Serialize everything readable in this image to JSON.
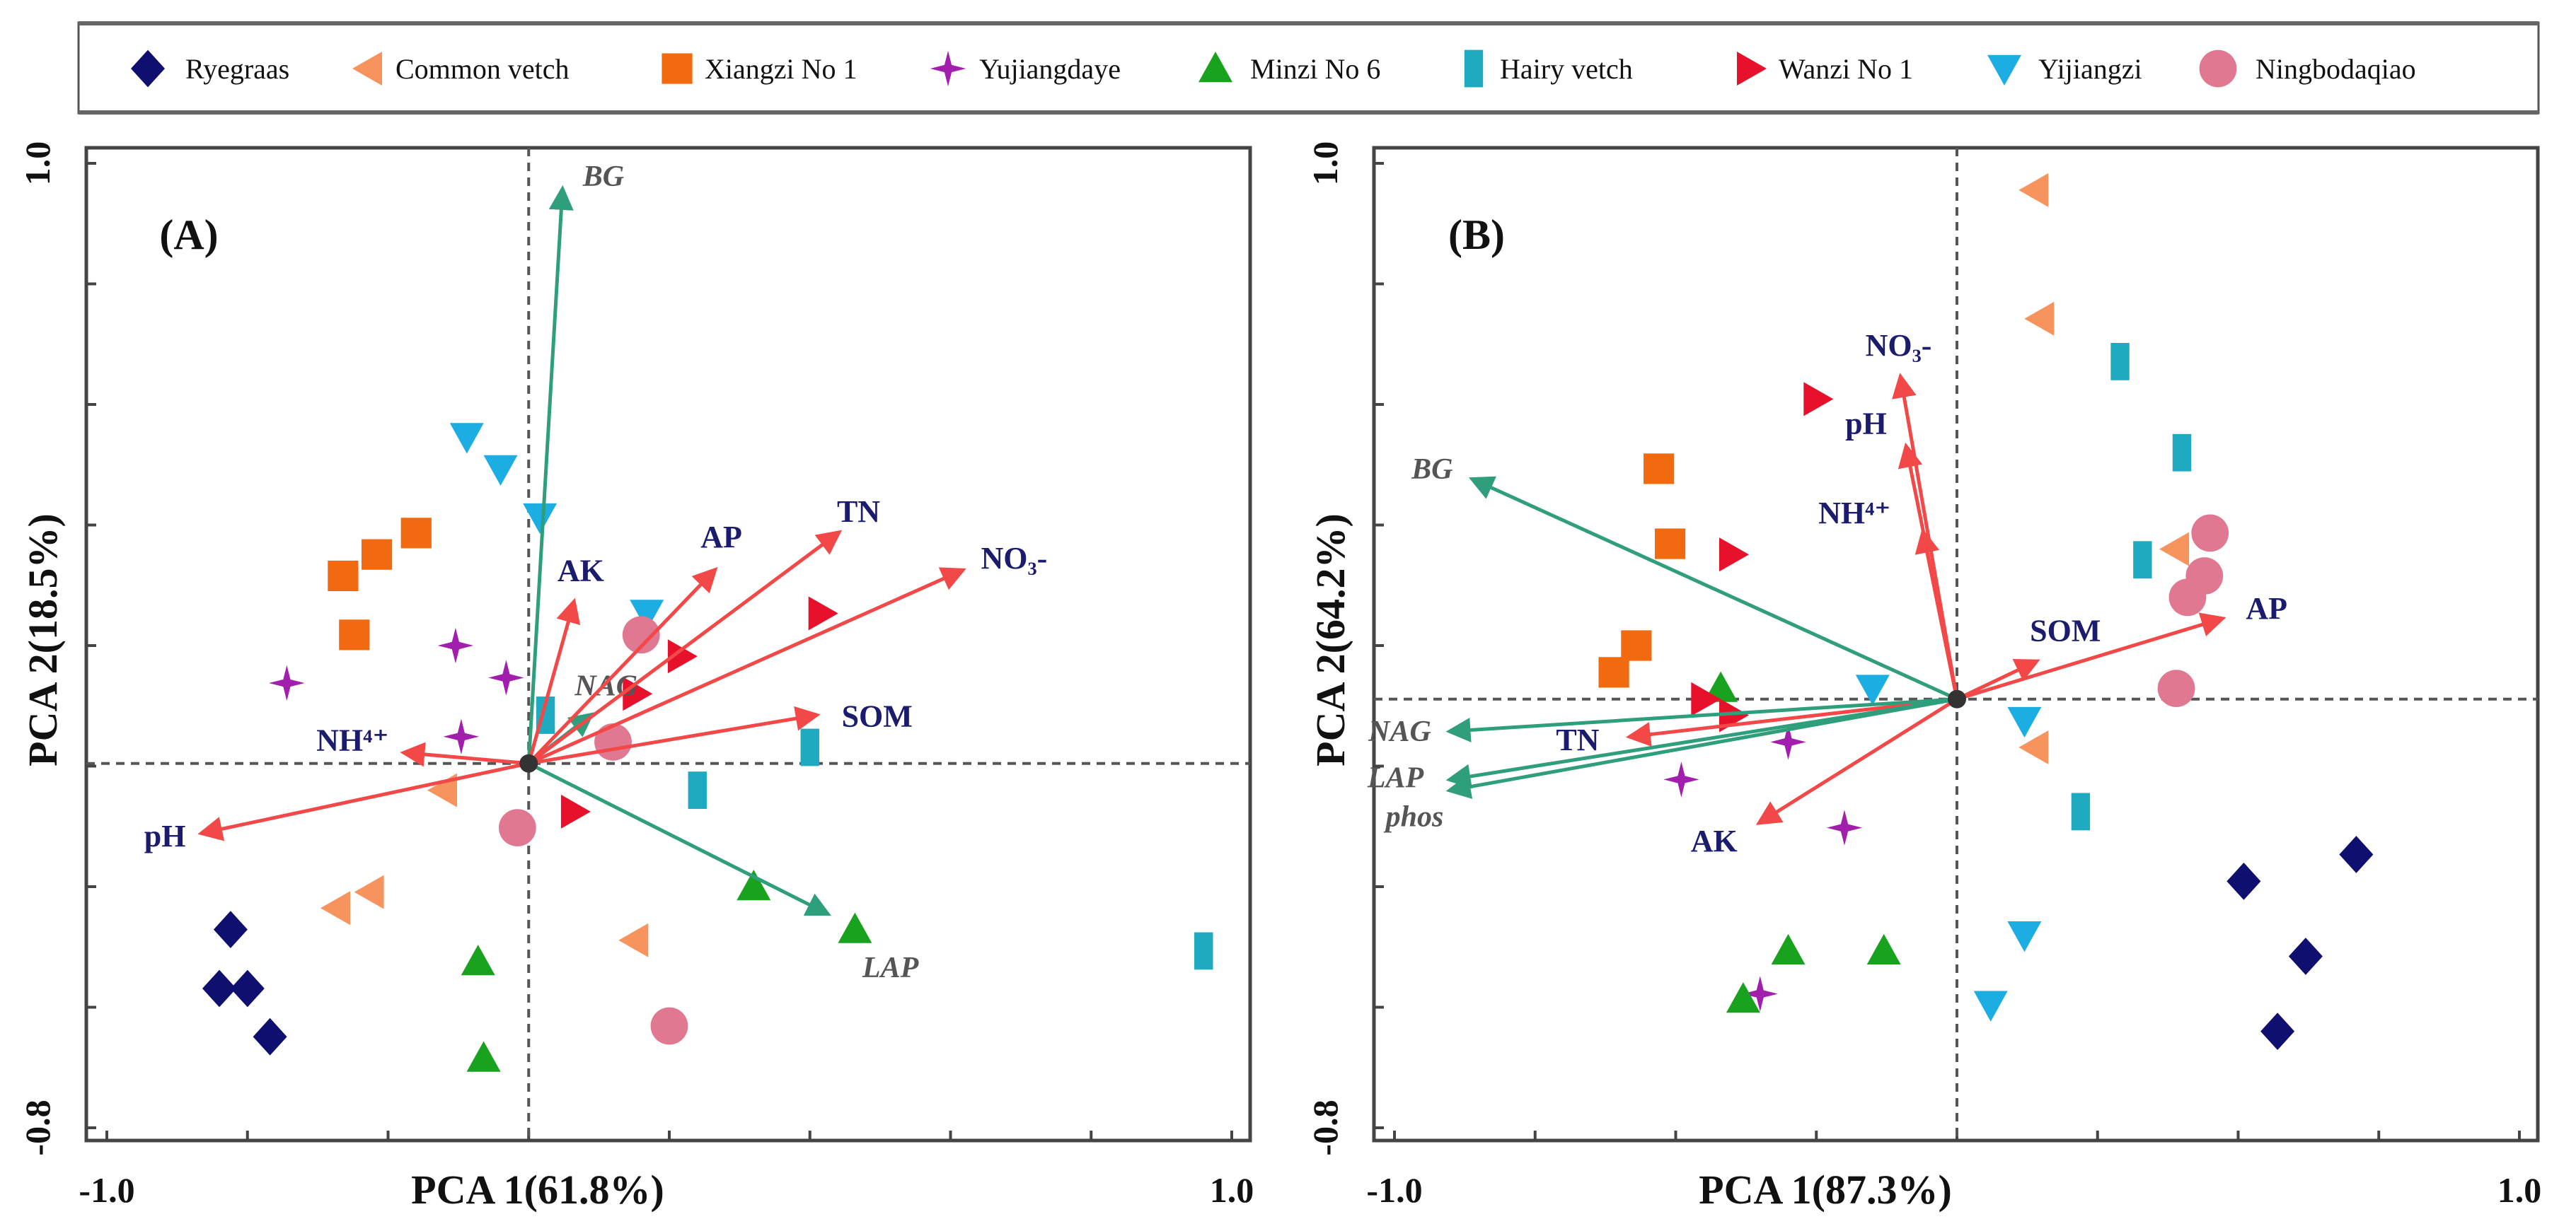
{
  "colors": {
    "Ryegraas": "#0f0f70",
    "Common vetch": "#f7945e",
    "Xiangzi No 1": "#f26a10",
    "Yujiangdaye": "#a21fad",
    "Minzi No 6": "#18a21e",
    "Hairy vetch": "#1eabc2",
    "Wanzi No 1": "#e8112b",
    "Yijiangzi": "#1caee3",
    "Ningbodaqiao": "#e07891",
    "env_arrow": "#f24848",
    "enzyme_arrow": "#2f9e7c",
    "env_label": "#1c1c6e",
    "enzyme_label": "#555555"
  },
  "legend": [
    {
      "name": "Ryegraas",
      "marker": "diamond"
    },
    {
      "name": "Common vetch",
      "marker": "triangle-left"
    },
    {
      "name": "Xiangzi No 1",
      "marker": "square"
    },
    {
      "name": "Yujiangdaye",
      "marker": "star"
    },
    {
      "name": "Minzi No 6",
      "marker": "triangle-up"
    },
    {
      "name": "Hairy vetch",
      "marker": "bar"
    },
    {
      "name": "Wanzi No 1",
      "marker": "triangle-right"
    },
    {
      "name": "Yijiangzi",
      "marker": "triangle-down"
    },
    {
      "name": "Ningbodaqiao",
      "marker": "circle"
    }
  ],
  "chart_data": [
    {
      "type": "scatter",
      "subtype": "PCA biplot",
      "title": "(A)",
      "xlabel": "PCA 1(61.8%)",
      "ylabel": "PCA 2(18.5%)",
      "xlim": [
        -1.0,
        1.0
      ],
      "ylim": [
        -0.8,
        1.0
      ],
      "xtick_labels": [
        "-1.0",
        "1.0"
      ],
      "ytick_labels": [
        "1.0",
        "-0.8"
      ],
      "grid": false,
      "legend": "top",
      "origin": [
        -0.25,
        -0.12
      ],
      "series": [
        {
          "name": "Ryegraas",
          "points": [
            [
              -0.78,
              -0.43
            ],
            [
              -0.8,
              -0.54
            ],
            [
              -0.75,
              -0.54
            ],
            [
              -0.71,
              -0.63
            ]
          ]
        },
        {
          "name": "Common vetch",
          "points": [
            [
              -0.4,
              -0.17
            ],
            [
              -0.59,
              -0.39
            ],
            [
              -0.53,
              -0.36
            ],
            [
              -0.06,
              -0.45
            ]
          ]
        },
        {
          "name": "Xiangzi No 1",
          "points": [
            [
              -0.58,
              0.23
            ],
            [
              -0.52,
              0.27
            ],
            [
              -0.45,
              0.31
            ],
            [
              -0.56,
              0.12
            ]
          ]
        },
        {
          "name": "Yujiangdaye",
          "points": [
            [
              -0.68,
              0.03
            ],
            [
              -0.38,
              0.1
            ],
            [
              -0.29,
              0.04
            ],
            [
              -0.37,
              -0.07
            ]
          ]
        },
        {
          "name": "Minzi No 6",
          "points": [
            [
              0.15,
              -0.35
            ],
            [
              0.33,
              -0.43
            ],
            [
              -0.34,
              -0.49
            ],
            [
              -0.33,
              -0.67
            ]
          ]
        },
        {
          "name": "Hairy vetch",
          "points": [
            [
              -0.22,
              -0.03
            ],
            [
              0.25,
              -0.09
            ],
            [
              0.05,
              -0.17
            ],
            [
              0.95,
              -0.47
            ]
          ]
        },
        {
          "name": "Wanzi No 1",
          "points": [
            [
              0.27,
              0.16
            ],
            [
              0.02,
              0.08
            ],
            [
              -0.06,
              0.01
            ],
            [
              -0.17,
              -0.21
            ]
          ]
        },
        {
          "name": "Yijiangzi",
          "points": [
            [
              -0.36,
              0.49
            ],
            [
              -0.3,
              0.43
            ],
            [
              -0.23,
              0.34
            ],
            [
              -0.04,
              0.16
            ]
          ]
        },
        {
          "name": "Ningbodaqiao",
          "points": [
            [
              -0.05,
              0.12
            ],
            [
              -0.1,
              -0.08
            ],
            [
              -0.27,
              -0.24
            ],
            [
              0.0,
              -0.61
            ]
          ]
        }
      ],
      "arrows": [
        {
          "label": "BG",
          "group": "enzyme",
          "x": -0.19,
          "y": 0.95
        },
        {
          "label": "NAG",
          "group": "enzyme",
          "x": -0.14,
          "y": -0.03
        },
        {
          "label": "LAP",
          "group": "enzyme",
          "x": 0.28,
          "y": -0.4
        },
        {
          "label": "AK",
          "group": "env",
          "x": -0.17,
          "y": 0.18
        },
        {
          "label": "AP",
          "group": "env",
          "x": 0.08,
          "y": 0.24
        },
        {
          "label": "TN",
          "group": "env",
          "x": 0.3,
          "y": 0.31
        },
        {
          "label": "NO₃-",
          "group": "env",
          "x": 0.52,
          "y": 0.24
        },
        {
          "label": "SOM",
          "group": "env",
          "x": 0.26,
          "y": -0.03
        },
        {
          "label": "NH⁴⁺",
          "group": "env",
          "x": -0.47,
          "y": -0.1
        },
        {
          "label": "pH",
          "group": "env",
          "x": -0.83,
          "y": -0.25
        }
      ]
    },
    {
      "type": "scatter",
      "subtype": "PCA biplot",
      "title": "(B)",
      "xlabel": "PCA 1(87.3%)",
      "ylabel": "PCA 2(64.2%)",
      "xlim": [
        -1.0,
        1.0
      ],
      "ylim": [
        -0.8,
        1.0
      ],
      "xtick_labels": [
        "-1.0",
        "1.0"
      ],
      "ytick_labels": [
        "1.0",
        "-0.8"
      ],
      "grid": false,
      "legend": "top",
      "origin": [
        0.0,
        0.0
      ],
      "series": [
        {
          "name": "Ryegraas",
          "points": [
            [
              0.71,
              -0.29
            ],
            [
              0.51,
              -0.34
            ],
            [
              0.62,
              -0.48
            ],
            [
              0.57,
              -0.62
            ]
          ]
        },
        {
          "name": "Common vetch",
          "points": [
            [
              0.14,
              0.95
            ],
            [
              0.15,
              0.71
            ],
            [
              0.39,
              0.28
            ],
            [
              0.14,
              -0.09
            ]
          ]
        },
        {
          "name": "Xiangzi No 1",
          "points": [
            [
              -0.53,
              0.43
            ],
            [
              -0.51,
              0.29
            ],
            [
              -0.57,
              0.1
            ],
            [
              -0.61,
              0.05
            ]
          ]
        },
        {
          "name": "Yujiangdaye",
          "points": [
            [
              -0.3,
              -0.08
            ],
            [
              -0.49,
              -0.15
            ],
            [
              -0.2,
              -0.24
            ],
            [
              -0.35,
              -0.55
            ]
          ]
        },
        {
          "name": "Minzi No 6",
          "points": [
            [
              -0.42,
              0.02
            ],
            [
              -0.3,
              -0.47
            ],
            [
              -0.13,
              -0.47
            ],
            [
              -0.38,
              -0.56
            ]
          ]
        },
        {
          "name": "Hairy vetch",
          "points": [
            [
              0.29,
              0.63
            ],
            [
              0.4,
              0.46
            ],
            [
              0.33,
              0.26
            ],
            [
              0.22,
              -0.21
            ]
          ]
        },
        {
          "name": "Wanzi No 1",
          "points": [
            [
              -0.25,
              0.56
            ],
            [
              -0.4,
              0.27
            ],
            [
              -0.45,
              0.0
            ],
            [
              -0.4,
              -0.03
            ]
          ]
        },
        {
          "name": "Yijiangzi",
          "points": [
            [
              -0.15,
              0.02
            ],
            [
              0.12,
              -0.04
            ],
            [
              0.12,
              -0.44
            ],
            [
              0.06,
              -0.57
            ]
          ]
        },
        {
          "name": "Ningbodaqiao",
          "points": [
            [
              0.45,
              0.31
            ],
            [
              0.44,
              0.23
            ],
            [
              0.41,
              0.19
            ],
            [
              0.39,
              0.02
            ]
          ]
        }
      ],
      "arrows": [
        {
          "label": "NO₃-",
          "group": "env",
          "x": -0.1,
          "y": 0.6
        },
        {
          "label": "pH",
          "group": "env",
          "x": -0.09,
          "y": 0.47
        },
        {
          "label": "NH⁴⁺",
          "group": "env",
          "x": -0.06,
          "y": 0.31
        },
        {
          "label": "SOM",
          "group": "env",
          "x": 0.14,
          "y": 0.07
        },
        {
          "label": "AP",
          "group": "env",
          "x": 0.47,
          "y": 0.15
        },
        {
          "label": "TN",
          "group": "env",
          "x": -0.58,
          "y": -0.07
        },
        {
          "label": "AK",
          "group": "env",
          "x": -0.35,
          "y": -0.23
        },
        {
          "label": "BG",
          "group": "enzyme",
          "x": -0.86,
          "y": 0.41
        },
        {
          "label": "NAG",
          "group": "enzyme",
          "x": -0.9,
          "y": -0.06
        },
        {
          "label": "LAP",
          "group": "enzyme",
          "x": -0.9,
          "y": -0.15
        },
        {
          "label": "phos",
          "group": "enzyme",
          "x": -0.9,
          "y": -0.17
        }
      ]
    }
  ]
}
